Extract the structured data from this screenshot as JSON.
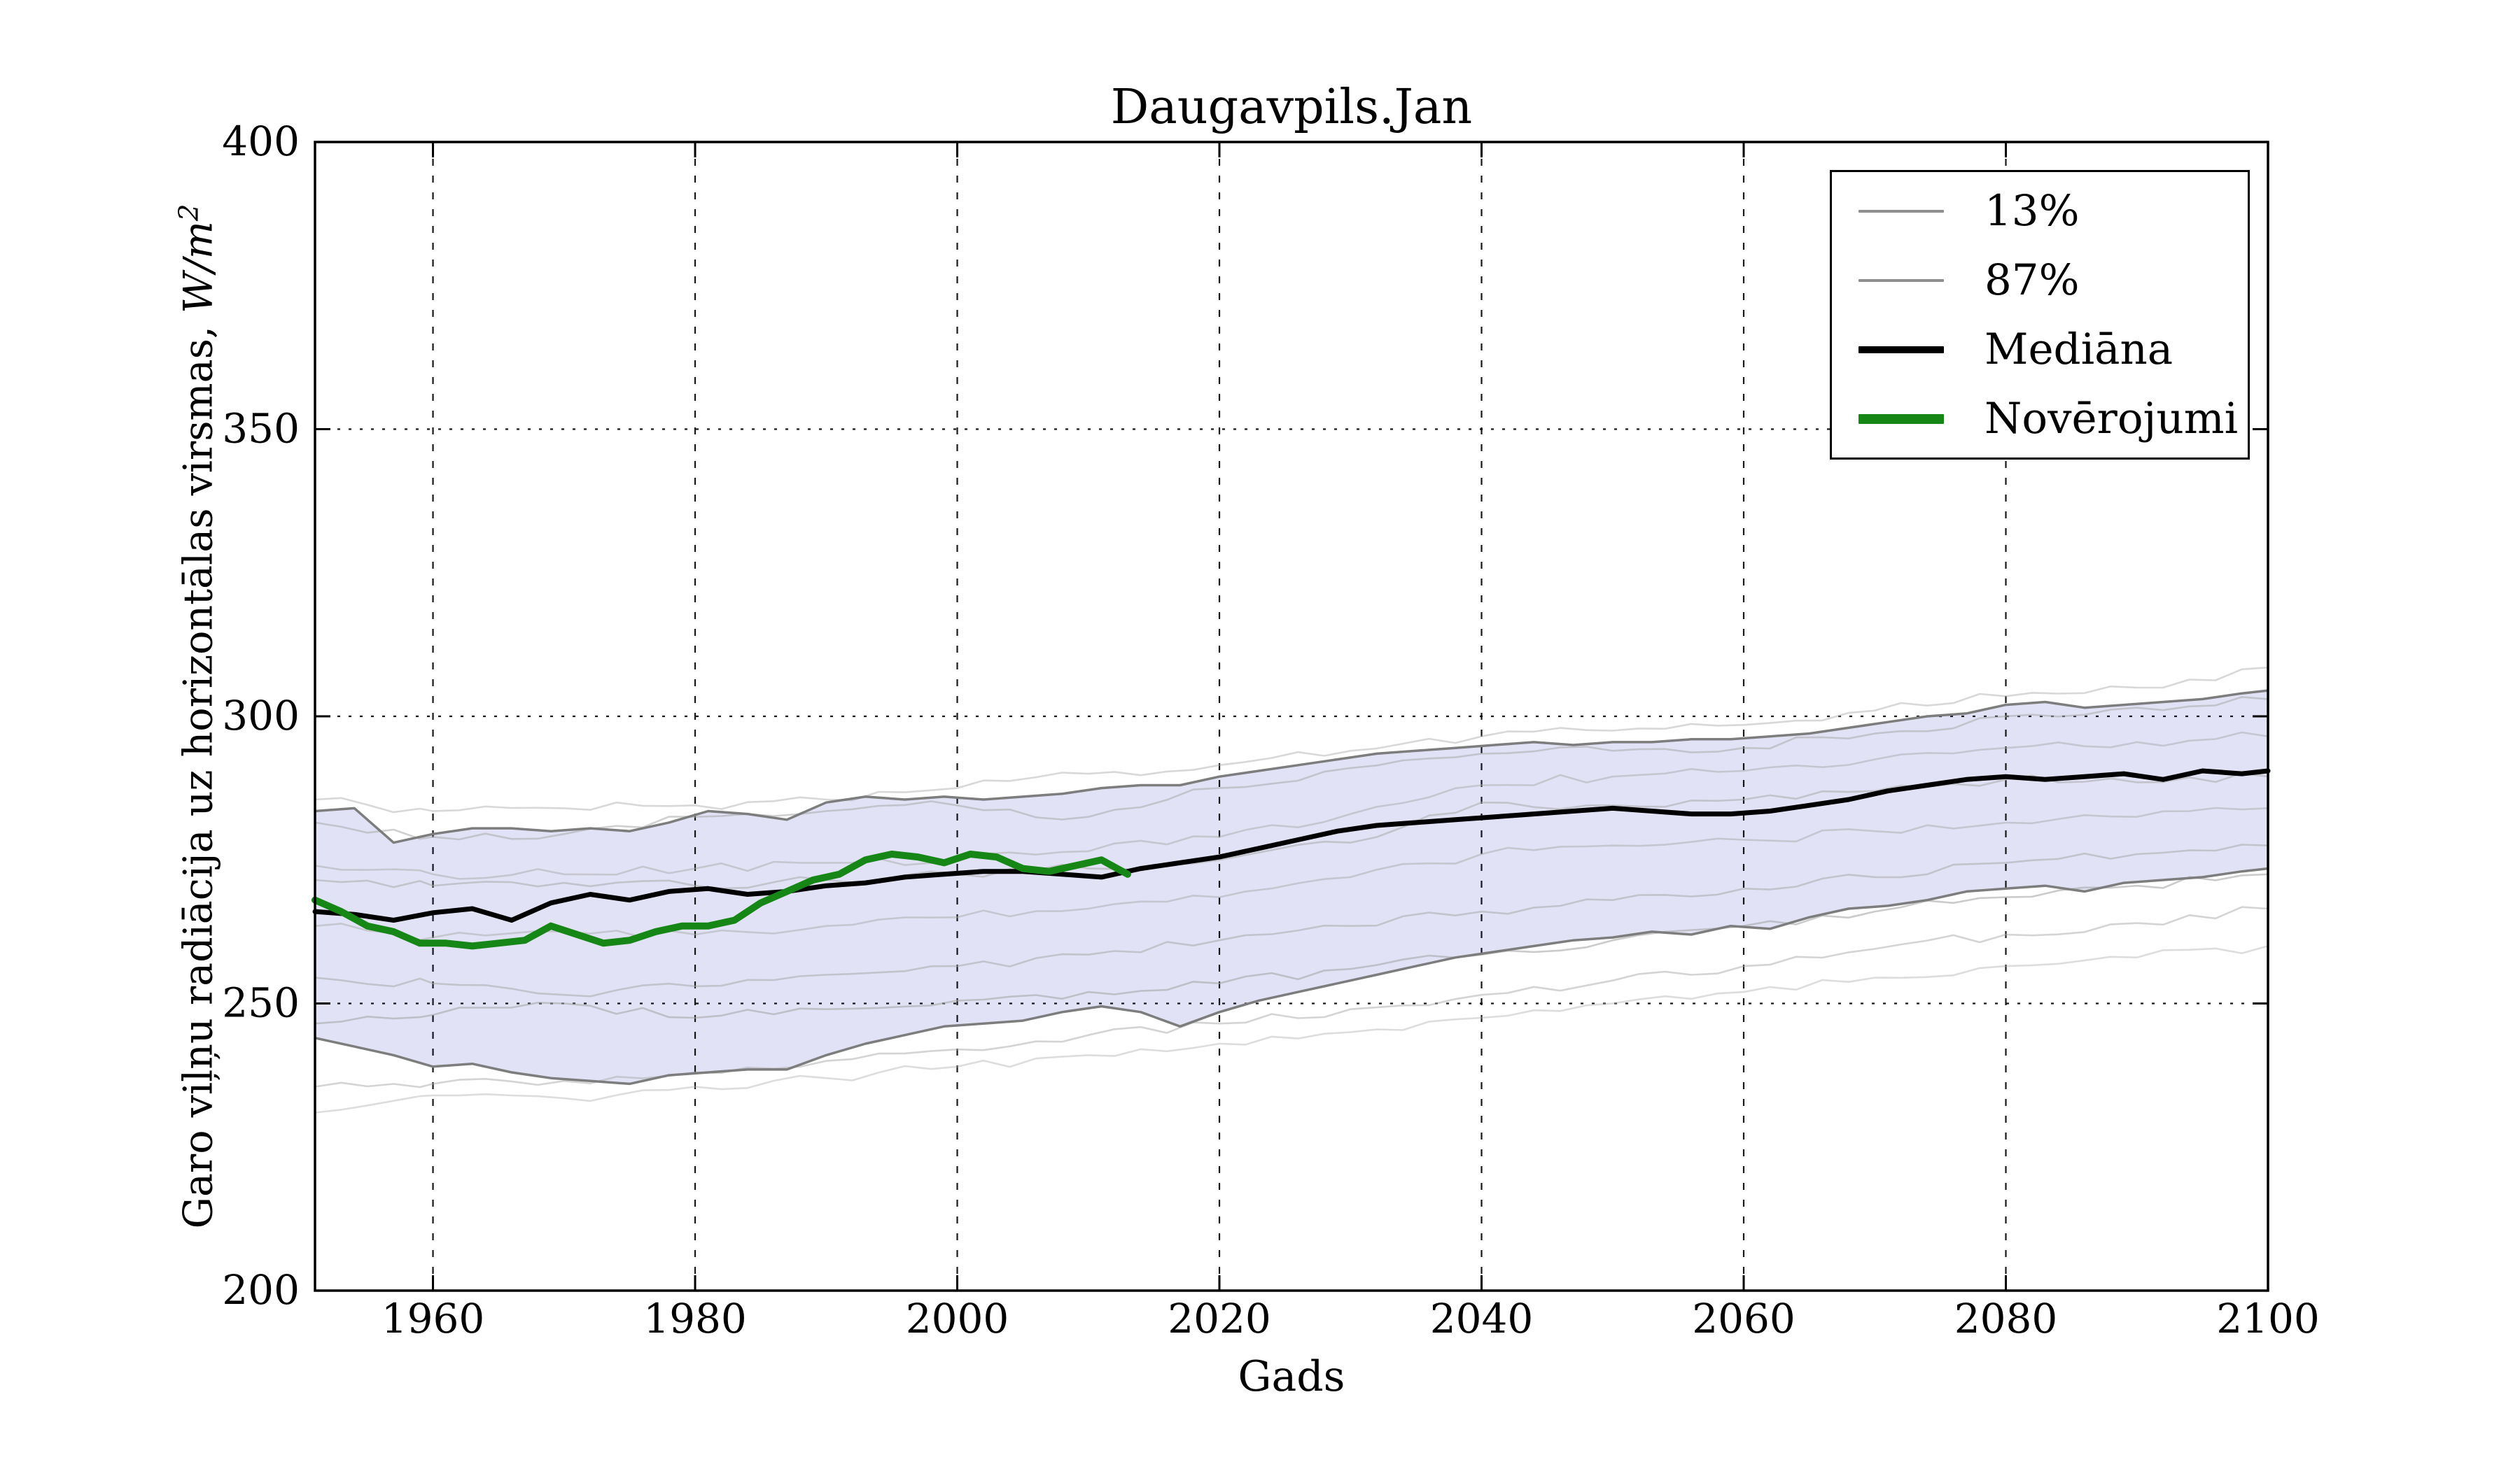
{
  "title": "Daugavpils.Jan",
  "labels": {
    "x": "Gads",
    "y_text": "Garo viļņu radiācija uz horizontālas virsmas, ",
    "y_math": "W/m",
    "y_exp": "2"
  },
  "legend": {
    "position": "upper right",
    "items": [
      {
        "label": "13%",
        "color": "#8f8f8f",
        "lw": 4
      },
      {
        "label": "87%",
        "color": "#8f8f8f",
        "lw": 4
      },
      {
        "label": "Mediāna",
        "color": "#000000",
        "lw": 10
      },
      {
        "label": "Novērojumi",
        "color": "#168616",
        "lw": 14
      }
    ]
  },
  "colors": {
    "background": "#ffffff",
    "axis": "#000000",
    "grid": "#000000",
    "band_fill": "#e2e2f6",
    "band_edge": "#7d7d7d",
    "ensemble": "#a9a9a9",
    "median": "#000000",
    "observations": "#168616"
  },
  "chart_data": {
    "type": "line",
    "title": "Daugavpils.Jan",
    "xlabel": "Gads",
    "ylabel": "Garo viļņu radiācija uz horizontālas virsmas, W/m²",
    "xlim": [
      1951,
      2100
    ],
    "ylim": [
      200,
      400
    ],
    "x_ticks": [
      1960,
      1980,
      2000,
      2020,
      2040,
      2060,
      2080,
      2100
    ],
    "y_ticks": [
      200,
      250,
      300,
      350,
      400
    ],
    "grid": true,
    "legend_position": "upper right",
    "band": {
      "lower": "13%",
      "upper": "87%",
      "fill": "#e2e2f6"
    },
    "x_arrays": {
      "years_proj": [
        1951,
        1954,
        1957,
        1960,
        1963,
        1966,
        1969,
        1972,
        1975,
        1978,
        1981,
        1984,
        1987,
        1990,
        1993,
        1996,
        1999,
        2002,
        2005,
        2008,
        2011,
        2014,
        2017,
        2020,
        2023,
        2026,
        2029,
        2032,
        2035,
        2038,
        2041,
        2044,
        2047,
        2050,
        2053,
        2056,
        2059,
        2062,
        2065,
        2068,
        2071,
        2074,
        2077,
        2080,
        2083,
        2086,
        2089,
        2092,
        2095,
        2098,
        2100
      ],
      "years_obs": [
        1951,
        1953,
        1955,
        1957,
        1959,
        1961,
        1963,
        1965,
        1967,
        1969,
        1971,
        1973,
        1975,
        1977,
        1979,
        1981,
        1983,
        1985,
        1987,
        1989,
        1991,
        1993,
        1995,
        1997,
        1999,
        2001,
        2003,
        2005,
        2007,
        2009,
        2011,
        2013
      ],
      "years_ens": [
        1951,
        1960,
        1970,
        1980,
        1990,
        2000,
        2010,
        2020,
        2030,
        2040,
        2050,
        2060,
        2070,
        2080,
        2090,
        2100
      ]
    },
    "series": [
      {
        "name": "13%",
        "role": "percentile-lower",
        "x": "years_proj",
        "color": "#7d7d7d",
        "width": 3.5,
        "opacity": 1,
        "y": [
          244,
          242.5,
          241,
          239,
          239.5,
          238,
          237,
          236.5,
          236,
          237.5,
          238,
          238.5,
          238.5,
          241,
          243,
          244.5,
          246,
          246.5,
          247,
          248.5,
          249.5,
          248.5,
          246,
          248.5,
          250.5,
          252,
          253.5,
          255,
          256.5,
          258,
          259,
          260,
          261,
          261.5,
          262.5,
          262,
          263.5,
          263,
          265,
          266.5,
          267,
          268,
          269.5,
          270,
          270.5,
          269.5,
          271,
          271.5,
          272,
          273,
          273.5
        ]
      },
      {
        "name": "87%",
        "role": "percentile-upper",
        "x": "years_proj",
        "color": "#7d7d7d",
        "width": 3.5,
        "opacity": 1,
        "y": [
          283.5,
          284,
          278,
          279.5,
          280.5,
          280.5,
          280,
          280.5,
          280,
          281.5,
          283.5,
          283,
          282,
          285,
          286,
          285.5,
          286,
          285.5,
          286,
          286.5,
          287.5,
          288,
          288,
          289.5,
          290.5,
          291.5,
          292.5,
          293.5,
          294,
          294.5,
          295,
          295.5,
          295,
          295.5,
          295.5,
          296,
          296,
          296.5,
          297,
          298,
          299,
          300,
          300.5,
          302,
          302.5,
          301.5,
          302,
          302.5,
          303,
          304,
          304.5
        ]
      },
      {
        "name": "Mediāna",
        "role": "median",
        "x": "years_proj",
        "color": "#000000",
        "width": 7,
        "opacity": 1,
        "y": [
          266,
          265.5,
          264.5,
          265.8,
          266.5,
          264.5,
          267.5,
          269,
          268,
          269.5,
          270,
          269,
          269.5,
          270.5,
          271,
          272,
          272.5,
          273,
          273,
          272.5,
          272,
          273.5,
          274.5,
          275.5,
          277,
          278.5,
          280,
          281,
          281.5,
          282,
          282.5,
          283,
          283.5,
          284,
          283.5,
          283,
          283,
          283.5,
          284.5,
          285.5,
          287,
          288,
          289,
          289.5,
          289,
          289.5,
          290,
          289,
          290.5,
          290,
          290.5
        ]
      },
      {
        "name": "Novērojumi",
        "role": "observations",
        "x": "years_obs",
        "color": "#168616",
        "width": 10,
        "opacity": 1,
        "y": [
          268,
          266,
          263.5,
          262.5,
          260.5,
          260.5,
          260,
          260.5,
          261,
          263.5,
          262,
          260.5,
          261,
          262.5,
          263.5,
          263.5,
          264.5,
          267.5,
          269.5,
          271.5,
          272.5,
          275,
          276,
          275.5,
          274.5,
          276,
          275.5,
          273.5,
          273,
          274,
          275,
          272.5
        ]
      },
      {
        "name": "ensemble-1",
        "role": "ensemble",
        "x": "years_ens",
        "color": "#a9a9a9",
        "width": 2.6,
        "opacity": 0.45,
        "jitter": 0.9,
        "y": [
          285.5,
          283.5,
          284,
          284.5,
          285.5,
          287.5,
          290,
          291.5,
          294,
          296.5,
          297.5,
          298.5,
          301,
          303.5,
          305,
          308.5
        ]
      },
      {
        "name": "ensemble-2",
        "role": "ensemble",
        "x": "years_ens",
        "color": "#a9a9a9",
        "width": 2.6,
        "opacity": 0.55,
        "jitter": 0.9,
        "y": [
          281.5,
          279,
          279.5,
          282.5,
          283.5,
          284.5,
          282.5,
          287.5,
          291,
          293.5,
          294,
          294.5,
          297,
          300,
          301.5,
          303
        ]
      },
      {
        "name": "ensemble-3",
        "role": "ensemble",
        "x": "years_ens",
        "color": "#a9a9a9",
        "width": 2.6,
        "opacity": 0.5,
        "jitter": 0.9,
        "y": [
          274,
          272.5,
          272.5,
          273.5,
          274.5,
          275,
          276.5,
          279,
          283,
          288,
          289.5,
          290.5,
          292.5,
          294.5,
          295.5,
          296.5
        ]
      },
      {
        "name": "ensemble-4",
        "role": "ensemble",
        "x": "years_ens",
        "color": "#a9a9a9",
        "width": 2.6,
        "opacity": 0.55,
        "jitter": 0.9,
        "y": [
          271.5,
          270.5,
          271,
          270.5,
          271.5,
          272.5,
          273.5,
          275,
          278,
          285,
          284.5,
          285.5,
          287,
          289,
          288.5,
          289.5
        ]
      },
      {
        "name": "ensemble-5",
        "role": "ensemble",
        "x": "years_ens",
        "color": "#a9a9a9",
        "width": 2.6,
        "opacity": 0.5,
        "jitter": 0.9,
        "y": [
          263.5,
          261.5,
          262.5,
          262,
          263.5,
          265,
          266.5,
          268.5,
          272,
          276,
          277.5,
          278.5,
          280,
          281.5,
          282.5,
          284
        ]
      },
      {
        "name": "ensemble-6",
        "role": "ensemble",
        "x": "years_ens",
        "color": "#a9a9a9",
        "width": 2.6,
        "opacity": 0.55,
        "jitter": 0.9,
        "y": [
          254.5,
          253.5,
          251.5,
          253,
          255,
          256.5,
          258.5,
          261,
          263.5,
          266,
          268,
          270,
          272,
          274.5,
          276,
          277.5
        ]
      },
      {
        "name": "ensemble-7",
        "role": "ensemble",
        "x": "years_ens",
        "color": "#a9a9a9",
        "width": 2.6,
        "opacity": 0.6,
        "jitter": 0.9,
        "y": [
          246.5,
          248,
          250,
          247.5,
          249,
          250.5,
          252,
          253.5,
          256,
          258.5,
          261,
          263.5,
          266,
          268.5,
          270.5,
          272.5
        ]
      },
      {
        "name": "ensemble-8",
        "role": "ensemble",
        "x": "years_ens",
        "color": "#a9a9a9",
        "width": 2.6,
        "opacity": 0.5,
        "jitter": 0.9,
        "y": [
          235.5,
          236,
          236.5,
          238,
          240,
          242,
          244.5,
          246.5,
          249,
          251.5,
          254,
          256.5,
          259.5,
          262,
          264,
          266.5
        ]
      },
      {
        "name": "ensemble-9",
        "role": "ensemble",
        "x": "years_ens",
        "color": "#a9a9a9",
        "width": 2.6,
        "opacity": 0.4,
        "jitter": 0.9,
        "y": [
          231,
          234,
          233.5,
          235.5,
          237,
          239,
          241,
          243,
          245,
          247.5,
          250,
          252,
          254.5,
          256.5,
          258,
          260
        ]
      }
    ]
  }
}
